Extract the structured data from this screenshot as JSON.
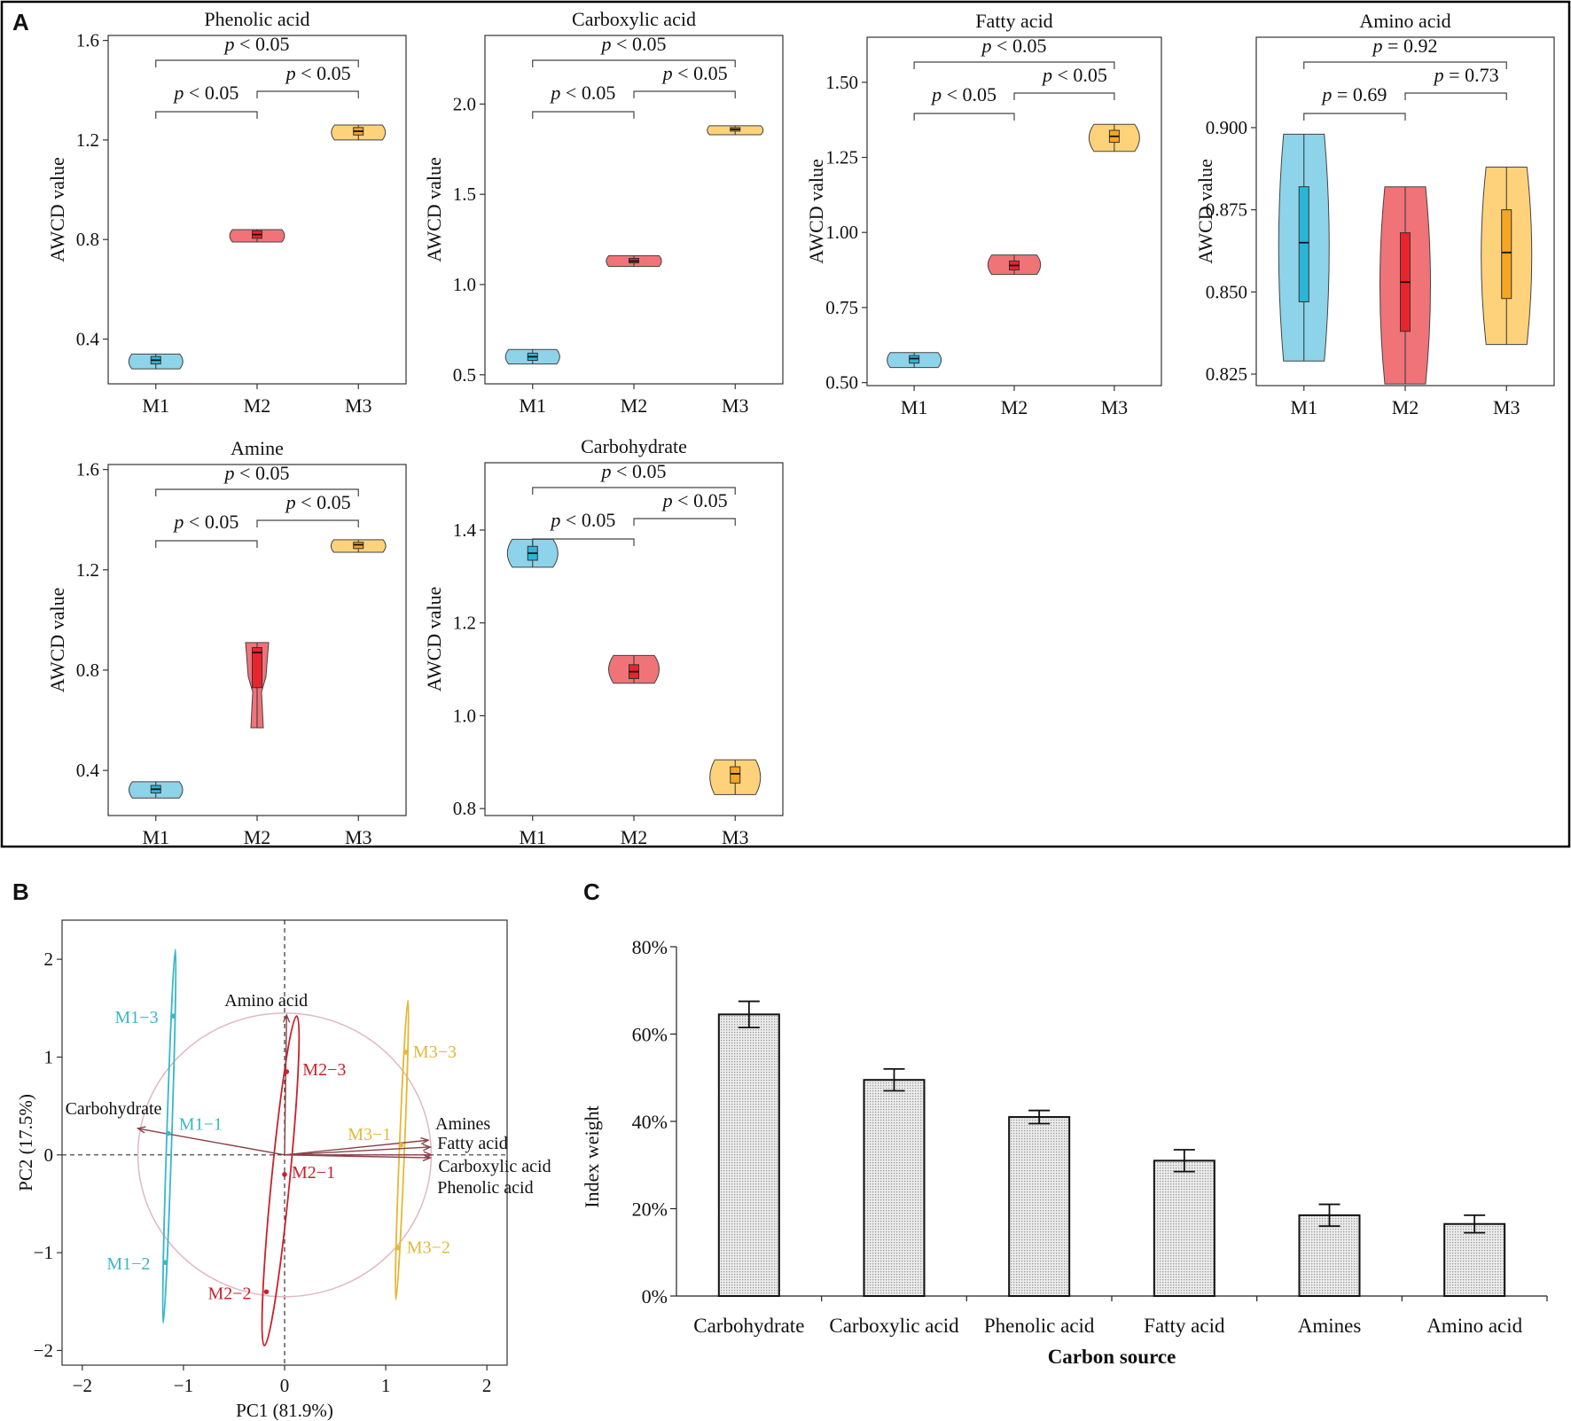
{
  "figure": {
    "panel_labels": [
      "A",
      "B",
      "C"
    ],
    "colors": {
      "M1": "#8dd3e9",
      "M2": "#f07378",
      "M3": "#fdd27a",
      "M1_box": "#2ab7d6",
      "M2_box": "#e8242c",
      "M3_box": "#f5a623",
      "pca_M1": "#3ab7c8",
      "pca_M2": "#c8222c",
      "pca_M3": "#e5b83a",
      "arrow": "#8a4048",
      "circle": "#e0b8c4",
      "bar_fill": "#d9d9d9"
    }
  },
  "chart_data": [
    {
      "id": "phenolic",
      "type": "violin",
      "title": "Phenolic acid",
      "ylabel": "AWCD value",
      "categories": [
        "M1",
        "M2",
        "M3"
      ],
      "ylim": [
        0.22,
        1.62
      ],
      "ticks": [
        0.4,
        0.8,
        1.2,
        1.6
      ],
      "series": [
        {
          "name": "M1",
          "min": 0.28,
          "max": 0.34,
          "q1": 0.3,
          "median": 0.315,
          "q3": 0.33
        },
        {
          "name": "M2",
          "min": 0.79,
          "max": 0.84,
          "q1": 0.805,
          "median": 0.82,
          "q3": 0.835
        },
        {
          "name": "M3",
          "min": 1.2,
          "max": 1.26,
          "q1": 1.22,
          "median": 1.235,
          "q3": 1.25
        }
      ],
      "comparisons": [
        {
          "label": "p < 0.05",
          "from": "M1",
          "to": "M2"
        },
        {
          "label": "p < 0.05",
          "from": "M2",
          "to": "M3"
        },
        {
          "label": "p < 0.05",
          "from": "M1",
          "to": "M3"
        }
      ]
    },
    {
      "id": "carboxylic",
      "type": "violin",
      "title": "Carboxylic acid",
      "ylabel": "AWCD value",
      "categories": [
        "M1",
        "M2",
        "M3"
      ],
      "ylim": [
        0.45,
        2.38
      ],
      "ticks": [
        0.5,
        1.0,
        1.5,
        2.0
      ],
      "series": [
        {
          "name": "M1",
          "min": 0.56,
          "max": 0.64,
          "q1": 0.58,
          "median": 0.6,
          "q3": 0.62
        },
        {
          "name": "M2",
          "min": 1.1,
          "max": 1.16,
          "q1": 1.12,
          "median": 1.13,
          "q3": 1.145
        },
        {
          "name": "M3",
          "min": 1.83,
          "max": 1.88,
          "q1": 1.85,
          "median": 1.86,
          "q3": 1.87
        }
      ],
      "comparisons": [
        {
          "label": "p < 0.05",
          "from": "M1",
          "to": "M2"
        },
        {
          "label": "p < 0.05",
          "from": "M2",
          "to": "M3"
        },
        {
          "label": "p < 0.05",
          "from": "M1",
          "to": "M3"
        }
      ]
    },
    {
      "id": "fatty",
      "type": "violin",
      "title": "Fatty acid",
      "ylabel": "AWCD value",
      "categories": [
        "M1",
        "M2",
        "M3"
      ],
      "ylim": [
        0.49,
        1.65
      ],
      "ticks": [
        0.5,
        0.75,
        1.0,
        1.25,
        1.5
      ],
      "tick_labels": [
        "0.50",
        "0.75",
        "1.00",
        "1.25",
        "1.50"
      ],
      "series": [
        {
          "name": "M1",
          "min": 0.55,
          "max": 0.6,
          "q1": 0.565,
          "median": 0.58,
          "q3": 0.59
        },
        {
          "name": "M2",
          "min": 0.86,
          "max": 0.925,
          "q1": 0.875,
          "median": 0.89,
          "q3": 0.905
        },
        {
          "name": "M3",
          "min": 1.27,
          "max": 1.36,
          "q1": 1.3,
          "median": 1.32,
          "q3": 1.34
        }
      ],
      "comparisons": [
        {
          "label": "p < 0.05",
          "from": "M1",
          "to": "M2"
        },
        {
          "label": "p < 0.05",
          "from": "M2",
          "to": "M3"
        },
        {
          "label": "p < 0.05",
          "from": "M1",
          "to": "M3"
        }
      ]
    },
    {
      "id": "amino",
      "type": "violin",
      "title": "Amino acid",
      "ylabel": "AWCD value",
      "categories": [
        "M1",
        "M2",
        "M3"
      ],
      "ylim": [
        0.8215,
        0.9275
      ],
      "ticks": [
        0.825,
        0.85,
        0.875,
        0.9
      ],
      "tick_labels": [
        "0.825",
        "0.850",
        "0.875",
        "0.900"
      ],
      "series": [
        {
          "name": "M1",
          "min": 0.829,
          "max": 0.898,
          "q1": 0.847,
          "median": 0.865,
          "q3": 0.882
        },
        {
          "name": "M2",
          "min": 0.822,
          "max": 0.882,
          "q1": 0.838,
          "median": 0.853,
          "q3": 0.868
        },
        {
          "name": "M3",
          "min": 0.834,
          "max": 0.888,
          "q1": 0.848,
          "median": 0.862,
          "q3": 0.875
        }
      ],
      "comparisons": [
        {
          "label": "p = 0.69",
          "from": "M1",
          "to": "M2"
        },
        {
          "label": "p = 0.73",
          "from": "M2",
          "to": "M3"
        },
        {
          "label": "p = 0.92",
          "from": "M1",
          "to": "M3"
        }
      ]
    },
    {
      "id": "amine",
      "type": "violin",
      "title": "Amine",
      "ylabel": "AWCD value",
      "categories": [
        "M1",
        "M2",
        "M3"
      ],
      "ylim": [
        0.22,
        1.62
      ],
      "ticks": [
        0.4,
        0.8,
        1.2,
        1.6
      ],
      "series": [
        {
          "name": "M1",
          "min": 0.29,
          "max": 0.355,
          "q1": 0.31,
          "median": 0.325,
          "q3": 0.34
        },
        {
          "name": "M2",
          "min": 0.57,
          "max": 0.91,
          "q1": 0.73,
          "median": 0.87,
          "q3": 0.89
        },
        {
          "name": "M3",
          "min": 1.27,
          "max": 1.32,
          "q1": 1.285,
          "median": 1.3,
          "q3": 1.31
        }
      ],
      "comparisons": [
        {
          "label": "p < 0.05",
          "from": "M1",
          "to": "M2"
        },
        {
          "label": "p < 0.05",
          "from": "M2",
          "to": "M3"
        },
        {
          "label": "p < 0.05",
          "from": "M1",
          "to": "M3"
        }
      ]
    },
    {
      "id": "carbohydrate",
      "type": "violin",
      "title": "Carbohydrate",
      "ylabel": "AWCD value",
      "categories": [
        "M1",
        "M2",
        "M3"
      ],
      "ylim": [
        0.785,
        1.545
      ],
      "ticks": [
        0.8,
        1.0,
        1.2,
        1.4
      ],
      "series": [
        {
          "name": "M1",
          "min": 1.32,
          "max": 1.38,
          "q1": 1.335,
          "median": 1.35,
          "q3": 1.365
        },
        {
          "name": "M2",
          "min": 1.07,
          "max": 1.13,
          "q1": 1.08,
          "median": 1.095,
          "q3": 1.11
        },
        {
          "name": "M3",
          "min": 0.83,
          "max": 0.905,
          "q1": 0.855,
          "median": 0.875,
          "q3": 0.89
        }
      ],
      "comparisons": [
        {
          "label": "p < 0.05",
          "from": "M1",
          "to": "M2"
        },
        {
          "label": "p < 0.05",
          "from": "M2",
          "to": "M3"
        },
        {
          "label": "p < 0.05",
          "from": "M1",
          "to": "M3"
        }
      ]
    },
    {
      "id": "pca",
      "type": "scatter",
      "xlabel": "PC1 (81.9%)",
      "ylabel": "PC2 (17.5%)",
      "xlim": [
        -2.2,
        2.2
      ],
      "ylim": [
        -2.15,
        2.4
      ],
      "xticks": [
        -2,
        -1,
        0,
        1,
        2
      ],
      "yticks": [
        -2,
        -1,
        0,
        1,
        2
      ],
      "xtick_labels": [
        "−2",
        "−1",
        "0",
        "1",
        "2"
      ],
      "ytick_labels": [
        "−2",
        "−1",
        "0",
        "1",
        "2"
      ],
      "circle_radius": 1.45,
      "points": [
        {
          "label": "M1−3",
          "group": "M1",
          "x": -1.1,
          "y": 1.42
        },
        {
          "label": "M1−1",
          "group": "M1",
          "x": -1.15,
          "y": 0.22
        },
        {
          "label": "M1−2",
          "group": "M1",
          "x": -1.18,
          "y": -1.1
        },
        {
          "label": "M2−3",
          "group": "M2",
          "x": 0.02,
          "y": 0.85
        },
        {
          "label": "M2−1",
          "group": "M2",
          "x": 0.0,
          "y": -0.2
        },
        {
          "label": "M2−2",
          "group": "M2",
          "x": -0.18,
          "y": -1.4
        },
        {
          "label": "M3−3",
          "group": "M3",
          "x": 1.2,
          "y": 1.05
        },
        {
          "label": "M3−1",
          "group": "M3",
          "x": 1.15,
          "y": 0.1
        },
        {
          "label": "M3−2",
          "group": "M3",
          "x": 1.12,
          "y": -0.95
        }
      ],
      "ellipses": [
        {
          "group": "M1",
          "from": [
            -1.2,
            -1.72
          ],
          "to": [
            -1.08,
            2.1
          ],
          "halfwidth": 0.025
        },
        {
          "group": "M2",
          "from": [
            -0.2,
            -1.95
          ],
          "to": [
            0.12,
            1.42
          ],
          "halfwidth": 0.09
        },
        {
          "group": "M3",
          "from": [
            1.1,
            -1.48
          ],
          "to": [
            1.22,
            1.58
          ],
          "halfwidth": 0.025
        }
      ],
      "loadings": [
        {
          "label": "Amino acid",
          "x": 0.02,
          "y": 1.43
        },
        {
          "label": "Carbohydrate",
          "x": -1.45,
          "y": 0.27
        },
        {
          "label": "Amines",
          "x": 1.42,
          "y": 0.15
        },
        {
          "label": "Fatty acid",
          "x": 1.44,
          "y": 0.08
        },
        {
          "label": "Carboxylic acid",
          "x": 1.45,
          "y": 0.0
        },
        {
          "label": "Phenolic acid",
          "x": 1.44,
          "y": -0.03
        }
      ]
    },
    {
      "id": "weights",
      "type": "bar",
      "xlabel": "Carbon source",
      "ylabel": "Index weight",
      "categories": [
        "Carbohydrate",
        "Carboxylic acid",
        "Phenolic acid",
        "Fatty acid",
        "Amines",
        "Amino acid"
      ],
      "values": [
        64.5,
        49.5,
        41.0,
        31.0,
        18.5,
        16.5
      ],
      "errors": [
        3.0,
        2.5,
        1.5,
        2.5,
        2.5,
        2.0
      ],
      "ylim": [
        0,
        80
      ],
      "yticks": [
        0,
        20,
        40,
        60,
        80
      ],
      "ytick_labels": [
        "0%",
        "20%",
        "40%",
        "60%",
        "80%"
      ]
    }
  ]
}
